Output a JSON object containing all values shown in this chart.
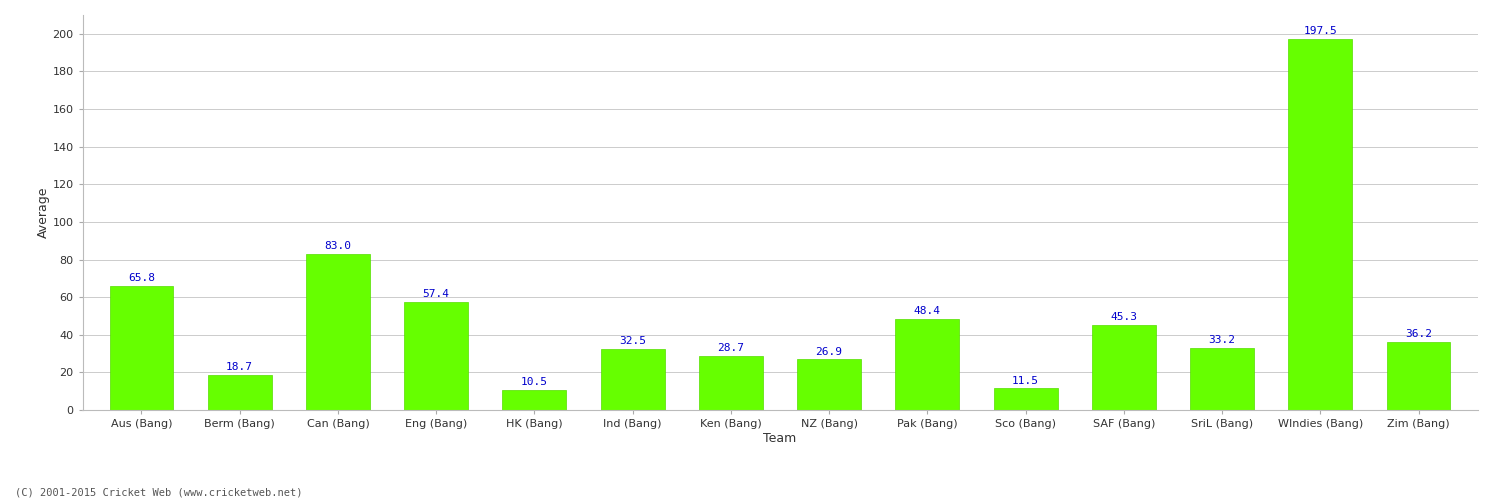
{
  "categories": [
    "Aus (Bang)",
    "Berm (Bang)",
    "Can (Bang)",
    "Eng (Bang)",
    "HK (Bang)",
    "Ind (Bang)",
    "Ken (Bang)",
    "NZ (Bang)",
    "Pak (Bang)",
    "Sco (Bang)",
    "SAF (Bang)",
    "SriL (Bang)",
    "WIndies (Bang)",
    "Zim (Bang)"
  ],
  "values": [
    65.8,
    18.7,
    83.0,
    57.4,
    10.5,
    32.5,
    28.7,
    26.9,
    48.4,
    11.5,
    45.3,
    33.2,
    197.5,
    36.2
  ],
  "bar_color": "#66ff00",
  "bar_edge_color": "#55dd00",
  "label_color": "#0000cc",
  "xlabel": "Team",
  "ylabel": "Average",
  "ylim": [
    0,
    210
  ],
  "yticks": [
    0,
    20,
    40,
    60,
    80,
    100,
    120,
    140,
    160,
    180,
    200
  ],
  "background_color": "#ffffff",
  "grid_color": "#cccccc",
  "footer": "(C) 2001-2015 Cricket Web (www.cricketweb.net)",
  "axis_label_fontsize": 9,
  "tick_fontsize": 8,
  "value_label_fontsize": 8
}
